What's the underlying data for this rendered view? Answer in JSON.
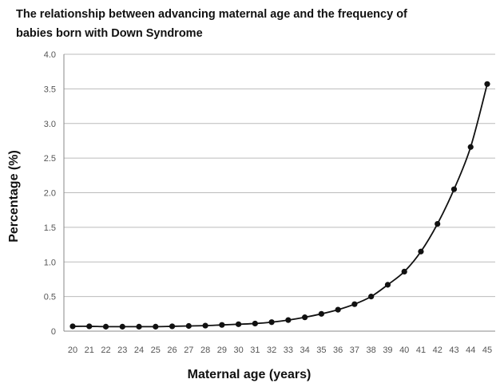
{
  "chart_data": {
    "type": "line",
    "title_lines": [
      "The relationship between advancing maternal age and the frequency of",
      "babies born with Down Syndrome"
    ],
    "xlabel": "Maternal age (years)",
    "ylabel": "Percentage (%)",
    "x": [
      20,
      21,
      22,
      23,
      24,
      25,
      26,
      27,
      28,
      29,
      30,
      31,
      32,
      33,
      34,
      35,
      36,
      37,
      38,
      39,
      40,
      41,
      42,
      43,
      44,
      45
    ],
    "series": [
      {
        "values": [
          0.07,
          0.07,
          0.065,
          0.065,
          0.065,
          0.065,
          0.07,
          0.075,
          0.08,
          0.09,
          0.1,
          0.11,
          0.13,
          0.16,
          0.2,
          0.25,
          0.31,
          0.39,
          0.5,
          0.67,
          0.86,
          1.15,
          1.55,
          2.05,
          2.66,
          3.57
        ]
      }
    ],
    "xlim": [
      20,
      45
    ],
    "ylim": [
      0,
      4.0
    ],
    "yticks": [
      "0",
      "0.5",
      "1.0",
      "1.5",
      "2.0",
      "2.5",
      "3.0",
      "3.5",
      "4.0"
    ],
    "ytick_values": [
      0,
      0.5,
      1.0,
      1.5,
      2.0,
      2.5,
      3.0,
      3.5,
      4.0
    ],
    "xticks": [
      "20",
      "21",
      "22",
      "23",
      "24",
      "25",
      "26",
      "27",
      "28",
      "29",
      "30",
      "31",
      "32",
      "33",
      "34",
      "35",
      "36",
      "37",
      "38",
      "39",
      "40",
      "41",
      "42",
      "43",
      "44",
      "45"
    ],
    "grid": true,
    "colors": {
      "line": "#111111",
      "grid": "#bbbbbb",
      "axis": "#888888"
    }
  }
}
